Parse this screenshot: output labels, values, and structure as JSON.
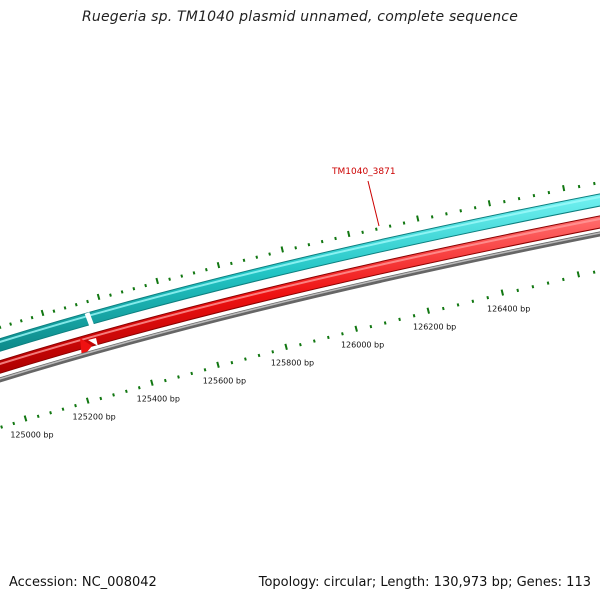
{
  "title": "Ruegeria sp. TM1040 plasmid unnamed, complete sequence",
  "footer": {
    "accession_prefix": "Accession:",
    "accession": "NC_008042",
    "topology_text": "Topology: circular; Length: 130,973 bp; Genes: 113"
  },
  "gene_label": "TM1040_3871",
  "colors": {
    "forward_strand": "#20c0c0",
    "reverse_strand": "#ee1111",
    "backbone": "#888888",
    "ticks": "#117711",
    "gene_label": "#cc0000"
  },
  "scale_labels": [
    {
      "bp": 125000,
      "label": "125000 bp"
    },
    {
      "bp": 125200,
      "label": "125200 bp"
    },
    {
      "bp": 125400,
      "label": "125400 bp"
    },
    {
      "bp": 125600,
      "label": "125600 bp"
    },
    {
      "bp": 125800,
      "label": "125800 bp"
    },
    {
      "bp": 126000,
      "label": "126000 bp"
    },
    {
      "bp": 126200,
      "label": "126200 bp"
    },
    {
      "bp": 126400,
      "label": "126400 bp"
    }
  ]
}
